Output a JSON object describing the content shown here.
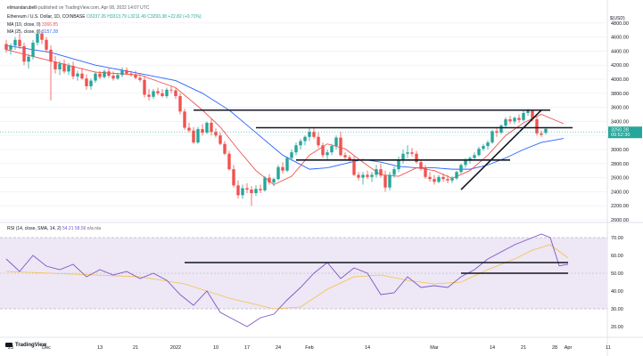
{
  "header": {
    "author": "elimandarubelli",
    "publisher": "published on TradingView.com, Apr 08, 2022 14:07 UTC"
  },
  "legend": {
    "symbol": "Ethereum / U.S. Dollar, 1D, COINBASE",
    "ohlc": "O3237.26 H3313.79 L3211.49 C3293.38 +22.82 (+0.71%)",
    "ma10": "MA (10, close, 0)",
    "ma10_value": "3366.85",
    "ma25": "MA (25, close, 0)",
    "ma25_value": "3157.28",
    "rsi": "RSI (14, close, SMA, 14, 2)",
    "rsi_values": "54.21 58.56",
    "rsi_na": "n/a n/a"
  },
  "currency": "$(USD)",
  "price_tag": {
    "value": "3250.28",
    "countdown": "09:52:30"
  },
  "branding": "TradingView",
  "colors": {
    "up": "#26a69a",
    "down": "#ef5350",
    "ma10": "#ef5350",
    "ma25": "#2962ff",
    "rsi": "#7e57c2",
    "rsi_sma": "#f5c242",
    "band": "#ede7f6",
    "trend": "#131722"
  },
  "chart_data": [
    {
      "type": "candlestick",
      "ylim": [
        2000,
        5000
      ],
      "price_ticks": [
        "4800.00",
        "4600.00",
        "4400.00",
        "4200.00",
        "4000.00",
        "3800.00",
        "3600.00",
        "3400.00",
        "3200.00",
        "3000.00",
        "2800.00",
        "2600.00",
        "2400.00",
        "2200.00",
        "2000.00"
      ],
      "candles": [
        [
          4500,
          4560,
          4380,
          4420
        ],
        [
          4420,
          4510,
          4350,
          4480
        ],
        [
          4480,
          4600,
          4420,
          4560
        ],
        [
          4560,
          4650,
          4430,
          4470
        ],
        [
          4470,
          4520,
          4200,
          4250
        ],
        [
          4250,
          4360,
          4150,
          4320
        ],
        [
          4320,
          4560,
          4280,
          4520
        ],
        [
          4520,
          4700,
          4480,
          4650
        ],
        [
          4650,
          4700,
          4500,
          4560
        ],
        [
          4560,
          4600,
          4380,
          4420
        ],
        [
          4420,
          4480,
          3700,
          4250
        ],
        [
          4250,
          4330,
          4080,
          4140
        ],
        [
          4140,
          4260,
          4060,
          4220
        ],
        [
          4220,
          4280,
          4080,
          4110
        ],
        [
          4110,
          4230,
          4060,
          4190
        ],
        [
          4190,
          4250,
          4000,
          4040
        ],
        [
          4040,
          4120,
          3980,
          4080
        ],
        [
          4080,
          4160,
          3990,
          4010
        ],
        [
          4010,
          4070,
          3850,
          3900
        ],
        [
          3900,
          4010,
          3850,
          3980
        ],
        [
          3980,
          4110,
          3950,
          4080
        ],
        [
          4080,
          4120,
          4000,
          4030
        ],
        [
          4030,
          4140,
          4010,
          4110
        ],
        [
          4110,
          4160,
          4020,
          4050
        ],
        [
          4050,
          4110,
          3980,
          4010
        ],
        [
          4010,
          4090,
          3990,
          4060
        ],
        [
          4060,
          4170,
          4030,
          4130
        ],
        [
          4130,
          4170,
          4060,
          4080
        ],
        [
          4080,
          4120,
          4040,
          4060
        ],
        [
          4060,
          4120,
          4000,
          4020
        ],
        [
          4020,
          4070,
          3960,
          3990
        ],
        [
          3990,
          4050,
          3740,
          3780
        ],
        [
          3780,
          3860,
          3700,
          3750
        ],
        [
          3750,
          3860,
          3720,
          3830
        ],
        [
          3830,
          3880,
          3770,
          3800
        ],
        [
          3800,
          3860,
          3740,
          3760
        ],
        [
          3760,
          3880,
          3730,
          3850
        ],
        [
          3850,
          3900,
          3800,
          3840
        ],
        [
          3840,
          3870,
          3720,
          3760
        ],
        [
          3760,
          3800,
          3500,
          3540
        ],
        [
          3540,
          3580,
          3280,
          3310
        ],
        [
          3310,
          3380,
          3240,
          3270
        ],
        [
          3270,
          3320,
          3080,
          3100
        ],
        [
          3100,
          3320,
          3080,
          3290
        ],
        [
          3290,
          3360,
          3200,
          3240
        ],
        [
          3240,
          3400,
          3220,
          3380
        ],
        [
          3380,
          3450,
          3200,
          3250
        ],
        [
          3250,
          3300,
          3170,
          3200
        ],
        [
          3200,
          3240,
          3060,
          3080
        ],
        [
          3080,
          3120,
          2920,
          2940
        ],
        [
          2940,
          2980,
          2700,
          2720
        ],
        [
          2720,
          2780,
          2460,
          2490
        ],
        [
          2490,
          2560,
          2300,
          2350
        ],
        [
          2350,
          2500,
          2300,
          2450
        ],
        [
          2450,
          2520,
          2380,
          2430
        ],
        [
          2430,
          2480,
          2200,
          2380
        ],
        [
          2380,
          2490,
          2340,
          2440
        ],
        [
          2440,
          2500,
          2380,
          2420
        ],
        [
          2420,
          2620,
          2400,
          2600
        ],
        [
          2600,
          2650,
          2500,
          2530
        ],
        [
          2530,
          2600,
          2480,
          2580
        ],
        [
          2580,
          2780,
          2560,
          2750
        ],
        [
          2750,
          2820,
          2660,
          2700
        ],
        [
          2700,
          2900,
          2680,
          2880
        ],
        [
          2880,
          3000,
          2840,
          2960
        ],
        [
          2960,
          3100,
          2920,
          3060
        ],
        [
          3060,
          3150,
          3000,
          3120
        ],
        [
          3120,
          3200,
          3060,
          3180
        ],
        [
          3180,
          3300,
          3120,
          3250
        ],
        [
          3250,
          3300,
          3150,
          3180
        ],
        [
          3180,
          3240,
          3020,
          3060
        ],
        [
          3060,
          3100,
          2880,
          2920
        ],
        [
          2920,
          3000,
          2860,
          2960
        ],
        [
          2960,
          3080,
          2920,
          3050
        ],
        [
          3050,
          3200,
          3000,
          3170
        ],
        [
          3170,
          3250,
          2900,
          2920
        ],
        [
          2920,
          2960,
          2860,
          2890
        ],
        [
          2890,
          2920,
          2830,
          2850
        ],
        [
          2850,
          2900,
          2620,
          2640
        ],
        [
          2640,
          2680,
          2560,
          2600
        ],
        [
          2600,
          2680,
          2500,
          2640
        ],
        [
          2640,
          2700,
          2580,
          2610
        ],
        [
          2610,
          2680,
          2540,
          2640
        ],
        [
          2640,
          2780,
          2600,
          2720
        ],
        [
          2720,
          2800,
          2600,
          2630
        ],
        [
          2630,
          2700,
          2400,
          2460
        ],
        [
          2460,
          2680,
          2420,
          2640
        ],
        [
          2640,
          2760,
          2600,
          2720
        ],
        [
          2720,
          2900,
          2680,
          2860
        ],
        [
          2860,
          3000,
          2800,
          2940
        ],
        [
          2940,
          3060,
          2880,
          2960
        ],
        [
          2960,
          3020,
          2900,
          2940
        ],
        [
          2940,
          2980,
          2800,
          2820
        ],
        [
          2820,
          2860,
          2700,
          2740
        ],
        [
          2740,
          2780,
          2580,
          2610
        ],
        [
          2610,
          2680,
          2540,
          2580
        ],
        [
          2580,
          2640,
          2500,
          2540
        ],
        [
          2540,
          2640,
          2520,
          2610
        ],
        [
          2610,
          2660,
          2540,
          2580
        ],
        [
          2580,
          2640,
          2520,
          2560
        ],
        [
          2560,
          2620,
          2520,
          2590
        ],
        [
          2590,
          2700,
          2570,
          2680
        ],
        [
          2680,
          2800,
          2660,
          2780
        ],
        [
          2780,
          2880,
          2740,
          2840
        ],
        [
          2840,
          2900,
          2800,
          2880
        ],
        [
          2880,
          2960,
          2850,
          2920
        ],
        [
          2920,
          3040,
          2900,
          3010
        ],
        [
          3010,
          3080,
          2980,
          3050
        ],
        [
          3050,
          3130,
          3000,
          3100
        ],
        [
          3100,
          3280,
          3080,
          3260
        ],
        [
          3260,
          3320,
          3180,
          3240
        ],
        [
          3240,
          3360,
          3220,
          3340
        ],
        [
          3340,
          3460,
          3300,
          3430
        ],
        [
          3430,
          3480,
          3360,
          3400
        ],
        [
          3400,
          3470,
          3360,
          3450
        ],
        [
          3450,
          3500,
          3380,
          3420
        ],
        [
          3420,
          3560,
          3400,
          3520
        ],
        [
          3520,
          3580,
          3480,
          3550
        ],
        [
          3550,
          3570,
          3400,
          3430
        ],
        [
          3430,
          3460,
          3200,
          3230
        ],
        [
          3230,
          3270,
          3180,
          3210
        ],
        [
          3237.26,
          3313.79,
          3211.49,
          3293.38
        ]
      ],
      "ma10": [
        [
          0,
          4420
        ],
        [
          10,
          4260
        ],
        [
          20,
          4100
        ],
        [
          30,
          4060
        ],
        [
          38,
          3880
        ],
        [
          44,
          3560
        ],
        [
          48,
          3320
        ],
        [
          52,
          3000
        ],
        [
          56,
          2700
        ],
        [
          60,
          2500
        ],
        [
          64,
          2620
        ],
        [
          68,
          2920
        ],
        [
          72,
          3080
        ],
        [
          76,
          3010
        ],
        [
          80,
          2820
        ],
        [
          84,
          2640
        ],
        [
          88,
          2620
        ],
        [
          92,
          2740
        ],
        [
          96,
          2700
        ],
        [
          100,
          2590
        ],
        [
          104,
          2700
        ],
        [
          108,
          2920
        ],
        [
          112,
          3200
        ],
        [
          116,
          3380
        ],
        [
          120,
          3500
        ],
        [
          125,
          3366.85
        ]
      ],
      "ma25": [
        [
          0,
          4480
        ],
        [
          10,
          4380
        ],
        [
          20,
          4200
        ],
        [
          30,
          4080
        ],
        [
          38,
          3980
        ],
        [
          44,
          3800
        ],
        [
          50,
          3560
        ],
        [
          56,
          3240
        ],
        [
          62,
          2920
        ],
        [
          68,
          2720
        ],
        [
          72,
          2740
        ],
        [
          76,
          2800
        ],
        [
          80,
          2860
        ],
        [
          84,
          2820
        ],
        [
          88,
          2760
        ],
        [
          92,
          2740
        ],
        [
          96,
          2740
        ],
        [
          100,
          2720
        ],
        [
          104,
          2720
        ],
        [
          108,
          2780
        ],
        [
          112,
          2880
        ],
        [
          116,
          3000
        ],
        [
          120,
          3100
        ],
        [
          125,
          3157.28
        ]
      ],
      "trendlines": [
        {
          "from": [
            42,
            3560
          ],
          "to": [
            122,
            3560
          ]
        },
        {
          "from": [
            56,
            3310
          ],
          "to": [
            127,
            3310
          ]
        },
        {
          "from": [
            65,
            2850
          ],
          "to": [
            113,
            2850
          ]
        },
        {
          "from": [
            102,
            2430
          ],
          "to": [
            120,
            3560
          ]
        }
      ]
    },
    {
      "type": "line",
      "title": "RSI (14, close, SMA, 14, 2)",
      "ylim": [
        15,
        75
      ],
      "ticks": [
        "70.00",
        "60.00",
        "50.00",
        "40.00",
        "30.00",
        "20.00"
      ],
      "band": [
        30,
        70
      ],
      "x_ticks": [
        {
          "label": "23",
          "i": 1
        },
        {
          "label": "Dec",
          "i": 9
        },
        {
          "label": "13",
          "i": 21
        },
        {
          "label": "21",
          "i": 29
        },
        {
          "label": "2022",
          "i": 38
        },
        {
          "label": "10",
          "i": 47
        },
        {
          "label": "17",
          "i": 54
        },
        {
          "label": "24",
          "i": 61
        },
        {
          "label": "Feb",
          "i": 68
        },
        {
          "label": "14",
          "i": 81
        },
        {
          "label": "Mar",
          "i": 96
        },
        {
          "label": "14",
          "i": 109
        },
        {
          "label": "21",
          "i": 116
        },
        {
          "label": "28",
          "i": 123
        },
        {
          "label": "Apr",
          "i": 126
        },
        {
          "label": "11",
          "i": 135
        }
      ],
      "rsi": [
        [
          0,
          58
        ],
        [
          3,
          51
        ],
        [
          6,
          60
        ],
        [
          9,
          54
        ],
        [
          12,
          52
        ],
        [
          15,
          55
        ],
        [
          18,
          48
        ],
        [
          21,
          52
        ],
        [
          24,
          49
        ],
        [
          27,
          51
        ],
        [
          30,
          47
        ],
        [
          33,
          50
        ],
        [
          36,
          46
        ],
        [
          39,
          38
        ],
        [
          42,
          32
        ],
        [
          45,
          40
        ],
        [
          48,
          28
        ],
        [
          51,
          24
        ],
        [
          54,
          20
        ],
        [
          57,
          25
        ],
        [
          60,
          27
        ],
        [
          63,
          35
        ],
        [
          66,
          42
        ],
        [
          69,
          50
        ],
        [
          72,
          56
        ],
        [
          75,
          47
        ],
        [
          78,
          53
        ],
        [
          81,
          50
        ],
        [
          84,
          38
        ],
        [
          87,
          39
        ],
        [
          90,
          48
        ],
        [
          93,
          42
        ],
        [
          96,
          43
        ],
        [
          99,
          42
        ],
        [
          102,
          48
        ],
        [
          105,
          52
        ],
        [
          108,
          58
        ],
        [
          111,
          62
        ],
        [
          114,
          66
        ],
        [
          117,
          69
        ],
        [
          120,
          72
        ],
        [
          122,
          70
        ],
        [
          124,
          54.21
        ],
        [
          126,
          55
        ]
      ],
      "sma": [
        [
          0,
          51
        ],
        [
          10,
          50
        ],
        [
          20,
          49
        ],
        [
          30,
          48
        ],
        [
          40,
          44
        ],
        [
          50,
          36
        ],
        [
          60,
          30
        ],
        [
          66,
          31
        ],
        [
          72,
          41
        ],
        [
          78,
          48
        ],
        [
          84,
          49
        ],
        [
          90,
          46
        ],
        [
          96,
          44
        ],
        [
          102,
          45
        ],
        [
          108,
          52
        ],
        [
          114,
          58
        ],
        [
          118,
          63
        ],
        [
          122,
          66
        ],
        [
          126,
          58.56
        ]
      ],
      "trendlines": [
        {
          "from": [
            40,
            56
          ],
          "to": [
            126,
            56
          ]
        },
        {
          "from": [
            102,
            50
          ],
          "to": [
            126,
            50
          ]
        }
      ]
    }
  ]
}
